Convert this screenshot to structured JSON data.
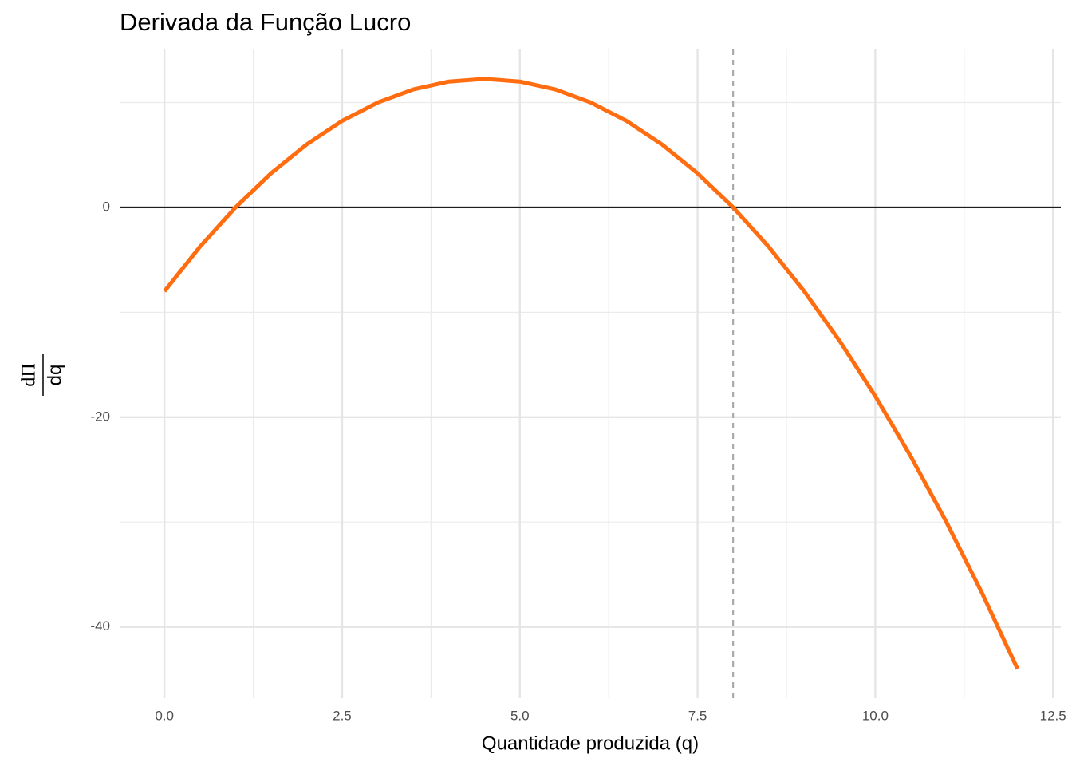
{
  "chart_data": {
    "type": "line",
    "title": "Derivada da Função Lucro",
    "xlabel": "Quantidade produzida (q)",
    "ylabel": {
      "numerator": "dΠ",
      "denominator": "dq"
    },
    "x": [
      0,
      0.5,
      1,
      1.5,
      2,
      2.5,
      3,
      3.5,
      4,
      4.5,
      5,
      5.5,
      6,
      6.5,
      7,
      7.5,
      8,
      8.5,
      9,
      9.5,
      10,
      10.5,
      11,
      11.5,
      12
    ],
    "series": [
      {
        "color": "#ff6d10",
        "values": [
          -8,
          -3.75,
          0,
          3.25,
          6,
          8.25,
          10,
          11.25,
          12,
          12.25,
          12,
          11.25,
          10,
          8.25,
          6,
          3.25,
          0,
          -3.75,
          -8,
          -12.75,
          -18,
          -23.75,
          -30,
          -36.75,
          -44
        ]
      }
    ],
    "xlim": [
      -0.63,
      12.61
    ],
    "ylim": [
      -46.8,
      15.06
    ],
    "xticks": [
      {
        "value": 0,
        "label": "0.0"
      },
      2.5,
      {
        "value": 5,
        "label": "5.0"
      },
      7.5,
      {
        "value": 10,
        "label": "10.0"
      },
      12.5
    ],
    "yticks": [
      -40,
      -20,
      0
    ],
    "x_minor_grid": [
      1.25,
      3.75,
      6.25,
      8.75,
      11.25
    ],
    "y_minor_grid": [
      -30,
      -10,
      10
    ],
    "hline": 0,
    "vline": 8,
    "grid": true
  }
}
